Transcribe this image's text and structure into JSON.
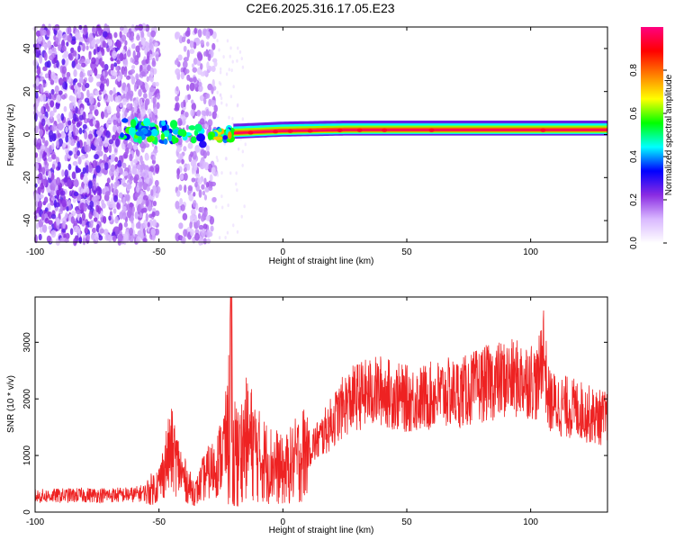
{
  "title": "C2E6.2025.316.17.05.E23",
  "chart_data": [
    {
      "type": "heatmap",
      "xlabel": "Height of straight line (km)",
      "ylabel": "Frequency (Hz)",
      "xlim": [
        -100,
        131
      ],
      "ylim": [
        -50,
        50
      ],
      "x_ticks": [
        "-100",
        "-50",
        "0",
        "50",
        "100"
      ],
      "y_ticks": [
        "-40",
        "-20",
        "0",
        "20",
        "40"
      ],
      "colorbar": {
        "label": "Normalized spectral amplitude",
        "range": [
          0,
          1
        ],
        "ticks": [
          "0.0",
          "0.2",
          "0.4",
          "0.6",
          "0.8"
        ],
        "colors": [
          "#ffffff",
          "#d9b8ff",
          "#8a2be2",
          "#0000ff",
          "#00ffff",
          "#00ff00",
          "#ffff00",
          "#ff8000",
          "#ff0000",
          "#ff0080"
        ]
      },
      "ridge": {
        "description_points": [
          {
            "x": -65,
            "y": 3
          },
          {
            "x": -50,
            "y": 1
          },
          {
            "x": -40,
            "y": 0
          },
          {
            "x": -30,
            "y": -1
          },
          {
            "x": -20,
            "y": 0.5
          },
          {
            "x": 0,
            "y": 1.5
          },
          {
            "x": 25,
            "y": 2
          },
          {
            "x": 50,
            "y": 2
          },
          {
            "x": 100,
            "y": 2
          },
          {
            "x": 131,
            "y": 2
          }
        ],
        "max_amplitude": 1.0
      },
      "noise_region_x": [
        -100,
        -27
      ]
    },
    {
      "type": "line",
      "xlabel": "Height of straight line (km)",
      "ylabel": "SNR (10 * v/v)",
      "xlim": [
        -100,
        131
      ],
      "ylim": [
        0,
        3800
      ],
      "x_ticks": [
        "-100",
        "-50",
        "0",
        "50",
        "100"
      ],
      "y_ticks": [
        "0",
        "1000",
        "2000",
        "3000"
      ],
      "color": "#ee2222",
      "x": [
        -100,
        -90,
        -80,
        -70,
        -60,
        -55,
        -50,
        -47,
        -45,
        -42,
        -40,
        -37,
        -35,
        -32,
        -30,
        -27,
        -25,
        -22,
        -21,
        -20,
        -18,
        -15,
        -12,
        -10,
        -7,
        -5,
        -2,
        0,
        5,
        10,
        15,
        20,
        25,
        30,
        35,
        40,
        45,
        50,
        55,
        60,
        65,
        70,
        75,
        80,
        85,
        90,
        95,
        100,
        103,
        105,
        107,
        110,
        115,
        120,
        125,
        131
      ],
      "y": [
        280,
        290,
        300,
        300,
        310,
        350,
        500,
        900,
        1100,
        800,
        600,
        400,
        350,
        600,
        700,
        800,
        1000,
        1400,
        3700,
        1200,
        1000,
        1300,
        1200,
        1000,
        900,
        850,
        800,
        700,
        900,
        1100,
        1300,
        1600,
        1900,
        2050,
        2100,
        2150,
        2050,
        2000,
        2000,
        2050,
        2100,
        2100,
        2150,
        2250,
        2300,
        2350,
        2350,
        2350,
        2250,
        3000,
        2000,
        1900,
        1850,
        1800,
        1700,
        1650
      ]
    }
  ]
}
